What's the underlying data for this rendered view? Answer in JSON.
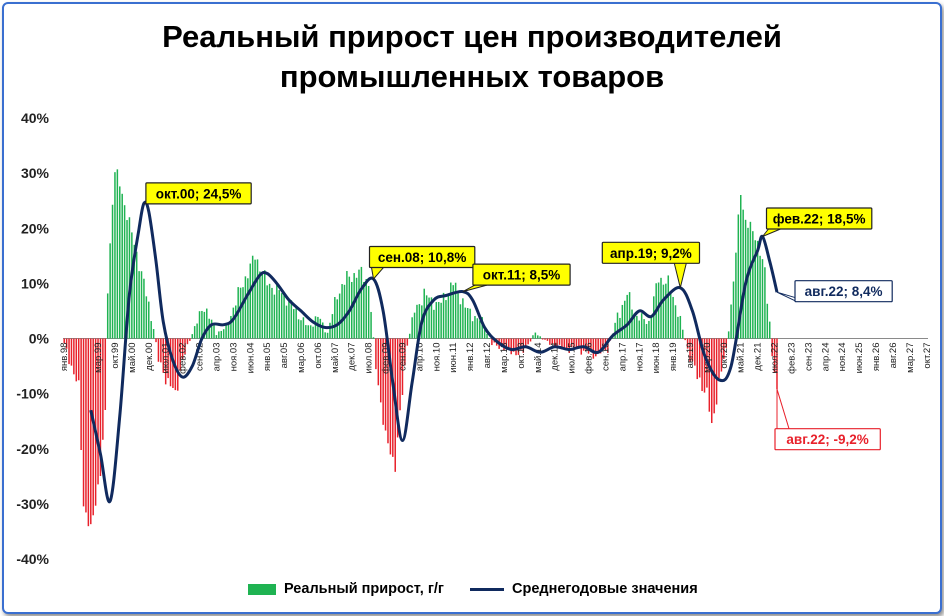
{
  "title_line1": "Реальный прирост цен производителей",
  "title_line2": "промышленных товаров",
  "colors": {
    "positive": "#1fb352",
    "negative": "#e8212b",
    "line": "#102a5e",
    "callout_fill": "#ffff00",
    "frame": "#3a6fd0"
  },
  "legend": {
    "bars_label": "Реальный прирост, г/г",
    "line_label": "Среднегодовые значения"
  },
  "chart_data": {
    "type": "bar+line",
    "y_ticks": [
      "40%",
      "30%",
      "20%",
      "10%",
      "0%",
      "-10%",
      "-20%",
      "-30%",
      "-40%"
    ],
    "ylim": [
      -40,
      40
    ],
    "x_range": [
      "янв.98",
      "окт.27"
    ],
    "x_ticks": [
      "янв.98",
      "мар.99",
      "окт.99",
      "май.00",
      "дек.00",
      "июл.01",
      "фев.02",
      "сен.02",
      "апр.03",
      "ноя.03",
      "июн.04",
      "янв.05",
      "авг.05",
      "мар.06",
      "окт.06",
      "май.07",
      "дек.07",
      "июл.08",
      "фев.09",
      "сен.09",
      "апр.10",
      "ноя.10",
      "июн.11",
      "янв.12",
      "авг.12",
      "мар.13",
      "окт.13",
      "май.14",
      "дек.14",
      "июл.15",
      "фев.16",
      "сен.16",
      "апр.17",
      "ноя.17",
      "июн.18",
      "янв.19",
      "авг.19",
      "мар.20",
      "окт.20",
      "май.21",
      "дек.21",
      "июл.22",
      "фев.23",
      "сен.23",
      "апр.24",
      "ноя.24",
      "июн.25",
      "янв.26",
      "авг.26",
      "мар.27",
      "окт.27"
    ],
    "bar_anchors": [
      [
        "янв.98",
        -1
      ],
      [
        "июл.98",
        -9
      ],
      [
        "сен.98",
        -30
      ],
      [
        "дек.98",
        -35
      ],
      [
        "апр.99",
        -24
      ],
      [
        "июн.99",
        -14
      ],
      [
        "июл.99",
        9
      ],
      [
        "сен.99",
        25
      ],
      [
        "окт.99",
        30.5
      ],
      [
        "дек.99",
        28
      ],
      [
        "май.00",
        19
      ],
      [
        "окт.00",
        10
      ],
      [
        "фев.01",
        2
      ],
      [
        "апр.01",
        -4
      ],
      [
        "авг.01",
        -8
      ],
      [
        "ноя.01",
        -10
      ],
      [
        "фев.02",
        -4
      ],
      [
        "июн.02",
        1
      ],
      [
        "ноя.02",
        6
      ],
      [
        "апр.03",
        1
      ],
      [
        "авг.03",
        2
      ],
      [
        "янв.04",
        8
      ],
      [
        "авг.04",
        15
      ],
      [
        "янв.05",
        10
      ],
      [
        "авг.05",
        8
      ],
      [
        "янв.06",
        5
      ],
      [
        "июн.06",
        2
      ],
      [
        "окт.06",
        4
      ],
      [
        "фев.07",
        1
      ],
      [
        "июн.07",
        8
      ],
      [
        "окт.07",
        11
      ],
      [
        "апр.08",
        12
      ],
      [
        "июл.08",
        10
      ],
      [
        "окт.08",
        -5
      ],
      [
        "фев.09",
        -18
      ],
      [
        "июн.09",
        -23
      ],
      [
        "авг.09",
        -14
      ],
      [
        "ноя.09",
        -1
      ],
      [
        "фев.10",
        5
      ],
      [
        "июн.10",
        8
      ],
      [
        "дек.10",
        6
      ],
      [
        "июн.11",
        10
      ],
      [
        "дек.11",
        5
      ],
      [
        "июн.12",
        3
      ],
      [
        "окт.12",
        -1
      ],
      [
        "апр.13",
        -2
      ],
      [
        "окт.13",
        -3
      ],
      [
        "апр.14",
        1
      ],
      [
        "окт.14",
        -1
      ],
      [
        "апр.15",
        -2
      ],
      [
        "окт.15",
        -2
      ],
      [
        "апр.16",
        -3
      ],
      [
        "окт.16",
        -2
      ],
      [
        "фев.17",
        4
      ],
      [
        "июн.17",
        8
      ],
      [
        "окт.17",
        4
      ],
      [
        "мар.18",
        3
      ],
      [
        "июл.18",
        11
      ],
      [
        "ноя.18",
        10
      ],
      [
        "мар.19",
        5
      ],
      [
        "июл.19",
        -2
      ],
      [
        "ноя.19",
        -7
      ],
      [
        "мар.20",
        -10
      ],
      [
        "май.20",
        -16
      ],
      [
        "авг.20",
        -8
      ],
      [
        "ноя.20",
        -2
      ],
      [
        "фев.21",
        10
      ],
      [
        "май.21",
        27
      ],
      [
        "июл.21",
        21
      ],
      [
        "ноя.21",
        19
      ],
      [
        "мар.22",
        12
      ],
      [
        "май.22",
        3
      ],
      [
        "июн.22",
        -3
      ],
      [
        "авг.22",
        -9.2
      ]
    ],
    "line_anchors": [
      [
        "дек.98",
        -13
      ],
      [
        "апр.99",
        -21
      ],
      [
        "авг.99",
        -29.5
      ],
      [
        "дек.99",
        -14
      ],
      [
        "апр.00",
        8
      ],
      [
        "авг.00",
        20
      ],
      [
        "окт.00",
        24.5
      ],
      [
        "дек.00",
        23
      ],
      [
        "мар.01",
        14
      ],
      [
        "июн.01",
        3
      ],
      [
        "окт.01",
        -4
      ],
      [
        "фев.02",
        -7
      ],
      [
        "июн.02",
        -5
      ],
      [
        "окт.02",
        0
      ],
      [
        "фев.03",
        2.5
      ],
      [
        "июл.03",
        2.5
      ],
      [
        "ноя.03",
        3.5
      ],
      [
        "май.04",
        8
      ],
      [
        "окт.04",
        11.5
      ],
      [
        "янв.05",
        11.8
      ],
      [
        "май.05",
        10
      ],
      [
        "окт.05",
        7
      ],
      [
        "мар.06",
        5
      ],
      [
        "авг.06",
        3
      ],
      [
        "янв.07",
        2
      ],
      [
        "июн.07",
        2.5
      ],
      [
        "ноя.07",
        5
      ],
      [
        "апр.08",
        9
      ],
      [
        "сен.08",
        10.8
      ],
      [
        "янв.09",
        5
      ],
      [
        "май.09",
        -8
      ],
      [
        "сен.09",
        -18.5
      ],
      [
        "янв.10",
        -8
      ],
      [
        "май.10",
        3
      ],
      [
        "окт.10",
        7
      ],
      [
        "мар.11",
        7.8
      ],
      [
        "окт.11",
        8.5
      ],
      [
        "фев.12",
        7
      ],
      [
        "июл.12",
        2
      ],
      [
        "дек.12",
        -0.5
      ],
      [
        "июн.13",
        -2
      ],
      [
        "дек.13",
        -1.5
      ],
      [
        "июн.14",
        -2.5
      ],
      [
        "дек.14",
        -1.5
      ],
      [
        "июн.15",
        -2
      ],
      [
        "дек.15",
        -1.5
      ],
      [
        "июн.16",
        -2.5
      ],
      [
        "дек.16",
        0.5
      ],
      [
        "июн.17",
        2.5
      ],
      [
        "ноя.17",
        5
      ],
      [
        "апр.18",
        4
      ],
      [
        "сен.18",
        7
      ],
      [
        "апр.19",
        9.2
      ],
      [
        "сен.19",
        5
      ],
      [
        "фев.20",
        -3
      ],
      [
        "авг.20",
        -7.5
      ],
      [
        "янв.21",
        -5
      ],
      [
        "июл.21",
        10
      ],
      [
        "дек.21",
        16
      ],
      [
        "фев.22",
        18.5
      ],
      [
        "май.22",
        14
      ],
      [
        "авг.22",
        8.4
      ]
    ],
    "callouts": [
      {
        "text": "окт.00; 24,5%",
        "at": "окт.00",
        "value": 24.5,
        "style": "yellow"
      },
      {
        "text": "сен.08; 10,8%",
        "at": "сен.08",
        "value": 10.8,
        "style": "yellow"
      },
      {
        "text": "окт.11; 8,5%",
        "at": "окт.11",
        "value": 8.5,
        "style": "yellow"
      },
      {
        "text": "апр.19; 9,2%",
        "at": "апр.19",
        "value": 9.2,
        "style": "yellow"
      },
      {
        "text": "фев.22; 18,5%",
        "at": "фев.22",
        "value": 18.5,
        "style": "yellow"
      },
      {
        "text": "авг.22; 8,4%",
        "at": "авг.22",
        "value": 8.4,
        "style": "white-blue"
      },
      {
        "text": "авг.22; -9,2%",
        "at": "авг.22",
        "value": -9.2,
        "style": "white-red"
      }
    ]
  }
}
